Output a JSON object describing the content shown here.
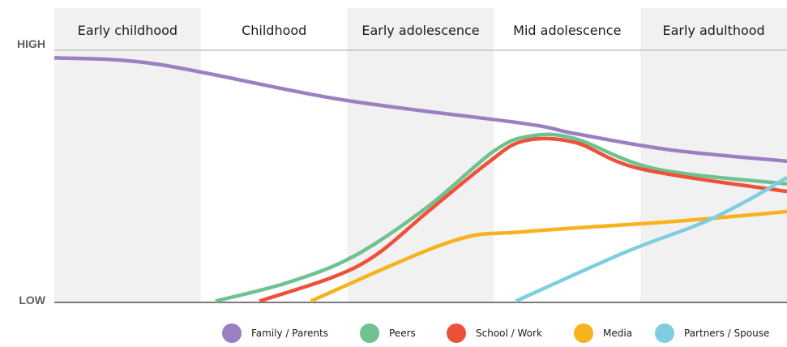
{
  "chart_data": {
    "type": "line",
    "stages": [
      "Early childhood",
      "Childhood",
      "Early adolescence",
      "Mid adolescence",
      "Early adulthood"
    ],
    "shaded_stages": [
      0,
      2,
      4
    ],
    "ylabel_high": "HIGH",
    "ylabel_low": "LOW",
    "x_range": [
      0,
      5
    ],
    "y_range": [
      0,
      100
    ],
    "series": [
      {
        "name": "Family / Parents",
        "color": "#9b7fc1",
        "points": [
          [
            0,
            97
          ],
          [
            0.7,
            94.5
          ],
          [
            1.95,
            80.5
          ],
          [
            3.2,
            71
          ],
          [
            3.55,
            67
          ],
          [
            4.2,
            60.5
          ],
          [
            5,
            56
          ]
        ]
      },
      {
        "name": "Peers",
        "color": "#6dc28f",
        "points": [
          [
            1.1,
            0.5
          ],
          [
            1.6,
            8
          ],
          [
            2.05,
            18.5
          ],
          [
            2.55,
            38
          ],
          [
            3.0,
            60
          ],
          [
            3.25,
            66
          ],
          [
            3.55,
            65
          ],
          [
            4.1,
            53
          ],
          [
            5,
            47
          ]
        ]
      },
      {
        "name": "School / Work",
        "color": "#ee5139",
        "points": [
          [
            1.4,
            0.5
          ],
          [
            1.9,
            10
          ],
          [
            2.2,
            19
          ],
          [
            2.55,
            36
          ],
          [
            2.95,
            55
          ],
          [
            3.2,
            64
          ],
          [
            3.55,
            63.5
          ],
          [
            4.0,
            53
          ],
          [
            5,
            44
          ]
        ]
      },
      {
        "name": "Media",
        "color": "#f8b21e",
        "points": [
          [
            1.75,
            0.5
          ],
          [
            2.7,
            24
          ],
          [
            3.2,
            28
          ],
          [
            4.2,
            32
          ],
          [
            5,
            36
          ]
        ]
      },
      {
        "name": "Partners / Spouse",
        "color": "#7fcde1",
        "points": [
          [
            3.15,
            0.5
          ],
          [
            3.9,
            20
          ],
          [
            4.4,
            31
          ],
          [
            4.7,
            39.5
          ],
          [
            5,
            49.5
          ]
        ]
      }
    ],
    "grid": false,
    "legend_position": "bottom"
  }
}
